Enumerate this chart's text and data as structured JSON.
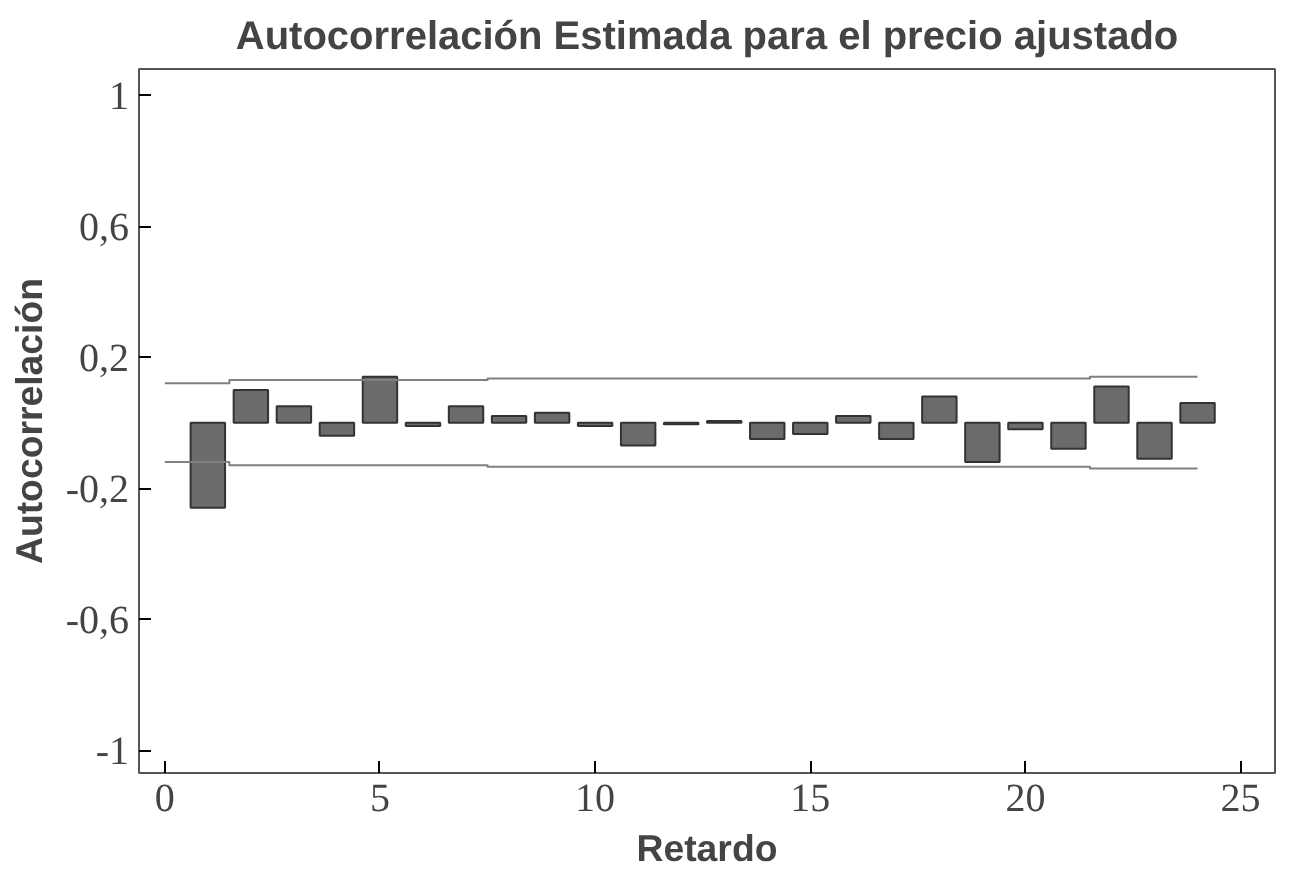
{
  "chart_data": {
    "type": "bar",
    "title": "Autocorrelación Estimada para el precio ajustado",
    "xlabel": "Retardo",
    "ylabel": "Autocorrelación",
    "x": [
      1,
      2,
      3,
      4,
      5,
      6,
      7,
      8,
      9,
      10,
      11,
      12,
      13,
      14,
      15,
      16,
      17,
      18,
      19,
      20,
      21,
      22,
      23,
      24
    ],
    "series": [
      {
        "color": "#6b6b6b",
        "values": [
          -0.26,
          0.1,
          0.05,
          -0.04,
          0.14,
          -0.01,
          0.05,
          0.02,
          0.03,
          -0.01,
          -0.07,
          -0.005,
          0.005,
          -0.05,
          -0.035,
          0.02,
          -0.05,
          0.08,
          -0.12,
          -0.02,
          -0.08,
          0.11,
          -0.11,
          0.06
        ]
      },
      {
        "type": "step",
        "color": "#808080",
        "x": [
          0,
          1.5,
          7.5,
          21.5,
          24
        ],
        "values": [
          0.12,
          0.13,
          0.135,
          0.14,
          0.14
        ]
      },
      {
        "type": "step",
        "color": "#808080",
        "x": [
          0,
          1.5,
          7.5,
          21.5,
          24
        ],
        "values": [
          -0.12,
          -0.13,
          -0.135,
          -0.14,
          -0.14
        ]
      }
    ],
    "xlim": [
      -0.6,
      25.8
    ],
    "ylim": [
      -1.07,
      1.08
    ],
    "xticks": [
      0,
      5,
      10,
      15,
      20,
      25
    ],
    "yticks": [
      {
        "value": -1,
        "label": "-1"
      },
      {
        "value": -0.6,
        "label": "-0,6"
      },
      {
        "value": -0.2,
        "label": "-0,2"
      },
      {
        "value": 0.2,
        "label": "0,2"
      },
      {
        "value": 0.6,
        "label": "0,6"
      },
      {
        "value": 1,
        "label": "1"
      }
    ],
    "grid": false
  }
}
